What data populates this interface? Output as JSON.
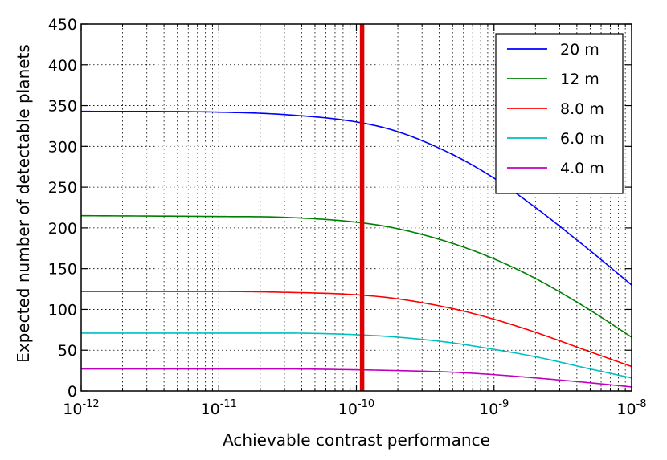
{
  "chart_data": {
    "type": "line",
    "title": "",
    "xlabel": "Achievable contrast performance",
    "ylabel": "Expected number of detectable planets",
    "xscale": "log",
    "xlim": [
      1e-12,
      1e-08
    ],
    "ylim": [
      0,
      450
    ],
    "grid": true,
    "x_ticks": [
      {
        "base": "10",
        "exp": "-12",
        "value": 1e-12
      },
      {
        "base": "10",
        "exp": "-11",
        "value": 1e-11
      },
      {
        "base": "10",
        "exp": "-10",
        "value": 1e-10
      },
      {
        "base": "10",
        "exp": "-9",
        "value": 1e-09
      },
      {
        "base": "10",
        "exp": "-8",
        "value": 1e-08
      }
    ],
    "y_ticks": [
      "0",
      "50",
      "100",
      "150",
      "200",
      "250",
      "300",
      "350",
      "400",
      "450"
    ],
    "vertical_marker": {
      "x": 1.1e-10,
      "color": "#dd0000"
    },
    "legend_position": "top-right",
    "x": [
      1e-12,
      1e-11,
      3e-11,
      1e-10,
      2e-10,
      5e-10,
      1e-09,
      2e-09,
      5e-09,
      1e-08
    ],
    "series": [
      {
        "name": "20 m",
        "color": "#0000ff",
        "values": [
          343,
          342,
          339,
          330,
          318,
          290,
          261,
          225,
          172,
          130
        ]
      },
      {
        "name": "12 m",
        "color": "#008000",
        "values": [
          215,
          214,
          213,
          207,
          199,
          181,
          162,
          138,
          99,
          66
        ]
      },
      {
        "name": "8.0 m",
        "color": "#ff0000",
        "values": [
          122,
          122,
          121,
          118,
          113,
          101,
          88,
          72,
          48,
          30
        ]
      },
      {
        "name": "6.0 m",
        "color": "#00bfbf",
        "values": [
          71,
          71,
          71,
          69,
          66,
          59,
          51,
          42,
          27,
          16
        ]
      },
      {
        "name": "4.0 m",
        "color": "#bf00bf",
        "values": [
          27,
          27,
          27,
          26,
          25,
          23,
          20,
          16,
          10,
          5
        ]
      }
    ]
  }
}
